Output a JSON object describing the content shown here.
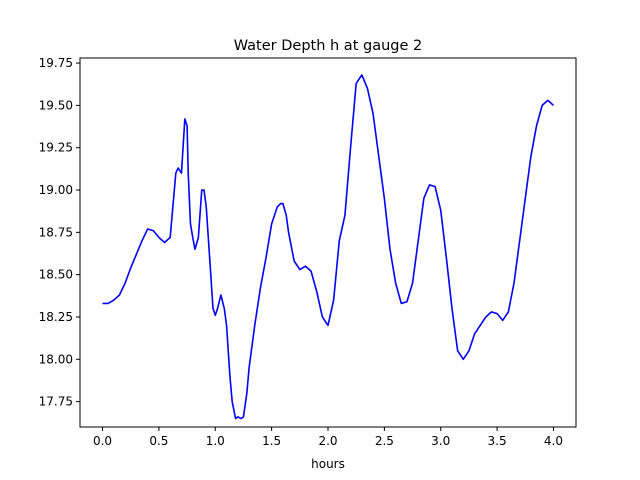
{
  "chart_data": {
    "type": "line",
    "title": "Water Depth h at gauge 2",
    "xlabel": "hours",
    "ylabel": "",
    "xlim": [
      -0.2,
      4.2
    ],
    "ylim": [
      17.6,
      19.78
    ],
    "xticks": [
      0.0,
      0.5,
      1.0,
      1.5,
      2.0,
      2.5,
      3.0,
      3.5,
      4.0
    ],
    "xtick_labels": [
      "0.0",
      "0.5",
      "1.0",
      "1.5",
      "2.0",
      "2.5",
      "3.0",
      "3.5",
      "4.0"
    ],
    "yticks": [
      17.75,
      18.0,
      18.25,
      18.5,
      18.75,
      19.0,
      19.25,
      19.5,
      19.75
    ],
    "ytick_labels": [
      "17.75",
      "18.00",
      "18.25",
      "18.50",
      "18.75",
      "19.00",
      "19.25",
      "19.50",
      "19.75"
    ],
    "grid": false,
    "line_color": "#0000ff",
    "series": [
      {
        "x": [
          0.0,
          0.05,
          0.1,
          0.15,
          0.2,
          0.25,
          0.3,
          0.35,
          0.4,
          0.45,
          0.5,
          0.55,
          0.6,
          0.65,
          0.67,
          0.7,
          0.73,
          0.75,
          0.76,
          0.78,
          0.8,
          0.82,
          0.85,
          0.88,
          0.9,
          0.92,
          0.95,
          0.98,
          1.0,
          1.02,
          1.05,
          1.08,
          1.1,
          1.13,
          1.15,
          1.18,
          1.2,
          1.23,
          1.25,
          1.28,
          1.3,
          1.35,
          1.4,
          1.45,
          1.5,
          1.55,
          1.58,
          1.6,
          1.63,
          1.65,
          1.7,
          1.75,
          1.8,
          1.85,
          1.9,
          1.95,
          2.0,
          2.05,
          2.1,
          2.15,
          2.2,
          2.25,
          2.3,
          2.35,
          2.4,
          2.45,
          2.5,
          2.55,
          2.6,
          2.65,
          2.7,
          2.75,
          2.8,
          2.85,
          2.9,
          2.95,
          3.0,
          3.05,
          3.1,
          3.15,
          3.2,
          3.25,
          3.3,
          3.35,
          3.4,
          3.45,
          3.5,
          3.55,
          3.6,
          3.65,
          3.7,
          3.75,
          3.8,
          3.85,
          3.9,
          3.95,
          4.0
        ],
        "y": [
          18.33,
          18.33,
          18.35,
          18.38,
          18.45,
          18.54,
          18.62,
          18.7,
          18.77,
          18.76,
          18.72,
          18.69,
          18.72,
          19.1,
          19.13,
          19.1,
          19.42,
          19.38,
          19.1,
          18.8,
          18.72,
          18.65,
          18.72,
          19.0,
          19.0,
          18.9,
          18.6,
          18.3,
          18.26,
          18.3,
          18.38,
          18.3,
          18.2,
          17.9,
          17.75,
          17.65,
          17.66,
          17.65,
          17.66,
          17.8,
          17.95,
          18.2,
          18.42,
          18.6,
          18.8,
          18.9,
          18.92,
          18.92,
          18.85,
          18.75,
          18.58,
          18.53,
          18.55,
          18.52,
          18.4,
          18.25,
          18.2,
          18.35,
          18.7,
          18.85,
          19.25,
          19.63,
          19.68,
          19.6,
          19.45,
          19.2,
          18.95,
          18.65,
          18.45,
          18.33,
          18.34,
          18.45,
          18.7,
          18.95,
          19.03,
          19.02,
          18.88,
          18.6,
          18.3,
          18.05,
          18.0,
          18.05,
          18.15,
          18.2,
          18.25,
          18.28,
          18.27,
          18.23,
          18.28,
          18.45,
          18.7,
          18.95,
          19.2,
          19.38,
          19.5,
          19.53,
          19.5
        ]
      }
    ]
  }
}
